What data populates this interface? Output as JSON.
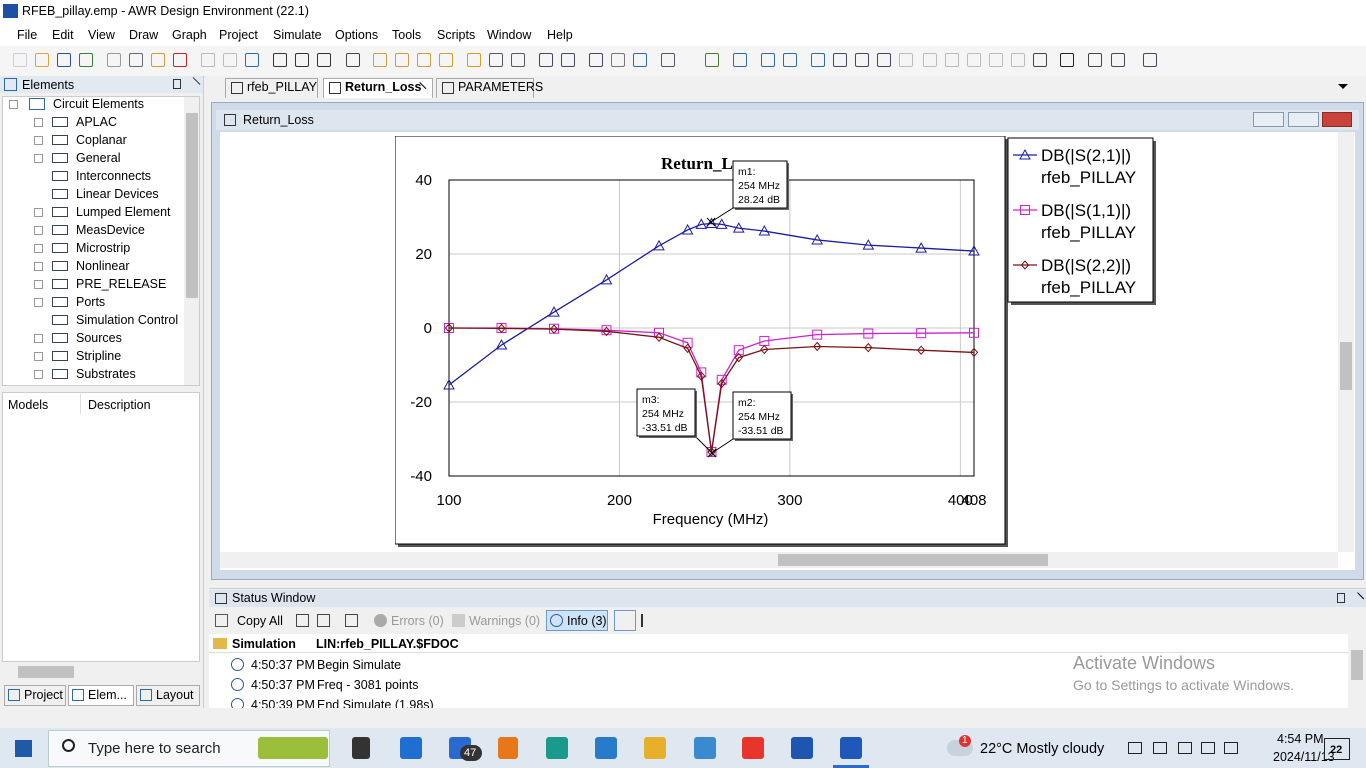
{
  "window": {
    "title": "RFEB_pillay.emp - AWR Design Environment (22.1)"
  },
  "menu": [
    "File",
    "Edit",
    "View",
    "Draw",
    "Graph",
    "Project",
    "Simulate",
    "Options",
    "Tools",
    "Scripts",
    "Window",
    "Help"
  ],
  "elements_panel": {
    "title": "Elements",
    "root": "Circuit Elements",
    "items": [
      "APLAC",
      "Coplanar",
      "General",
      "Interconnects",
      "Linear Devices",
      "Lumped Element",
      "MeasDevice",
      "Microstrip",
      "Nonlinear",
      "PRE_RELEASE",
      "Ports",
      "Simulation Control",
      "Sources",
      "Stripline",
      "Substrates"
    ]
  },
  "models_header": [
    "Models",
    "Description"
  ],
  "left_tabs": [
    "Project",
    "Elem...",
    "Layout"
  ],
  "doc_tabs": [
    "rfeb_PILLAY",
    "Return_Loss",
    "PARAMETERS"
  ],
  "graph_window": {
    "title": "Return_Loss"
  },
  "chart_data": {
    "type": "line",
    "title": "Return_Loss",
    "x_label": "Frequency (MHz)",
    "x": [
      100,
      130.8,
      161.6,
      192.4,
      223.2,
      240,
      248,
      254,
      260,
      270,
      285,
      316,
      346,
      377,
      408
    ],
    "xlim": [
      100,
      408
    ],
    "xticks": [
      100,
      200,
      300,
      400,
      408
    ],
    "ylim": [
      -40,
      40
    ],
    "yticks": [
      -40,
      -20,
      0,
      20,
      40
    ],
    "grid": true,
    "series": [
      {
        "name": "DB(|S(2,1)|)",
        "source": "rfeb_PILLAY",
        "color": "#1c1ca8",
        "marker": "triangle",
        "values": [
          -15.4,
          -4.6,
          4.3,
          13,
          22.2,
          26.5,
          28,
          28.24,
          28,
          27,
          26.2,
          23.8,
          22.4,
          21.6,
          20.8
        ]
      },
      {
        "name": "DB(|S(1,1)|)",
        "source": "rfeb_PILLAY",
        "color": "#d020d0",
        "marker": "square",
        "values": [
          0,
          0,
          -0.2,
          -0.6,
          -1.3,
          -4,
          -12,
          -33.51,
          -14,
          -6,
          -3.5,
          -1.8,
          -1.5,
          -1.4,
          -1.3
        ]
      },
      {
        "name": "DB(|S(2,2)|)",
        "source": "rfeb_PILLAY",
        "color": "#7a1414",
        "marker": "diamond",
        "values": [
          0,
          -0.1,
          -0.3,
          -0.9,
          -2.5,
          -5.5,
          -13,
          -33.51,
          -15,
          -8,
          -5.8,
          -5,
          -5.3,
          -6,
          -6.6
        ]
      }
    ],
    "annotations": [
      {
        "lines": [
          "m1:",
          "254 MHz",
          "28.24 dB"
        ]
      },
      {
        "lines": [
          "m2:",
          "254 MHz",
          "-33.51 dB"
        ]
      },
      {
        "lines": [
          "m3:",
          "254 MHz",
          "-33.51 dB"
        ]
      }
    ]
  },
  "status_window": {
    "title": "Status Window",
    "toolbar": [
      "Copy All",
      "Errors (0)",
      "Warnings (0)",
      "Info (3)"
    ],
    "group": [
      "Simulation",
      "LIN:rfeb_PILLAY.$FDOC"
    ],
    "rows": [
      [
        "4:50:37 PM",
        "Begin Simulate"
      ],
      [
        "4:50:37 PM",
        "Freq - 3081 points"
      ],
      [
        "4:50:39 PM",
        "End Simulate (1.98s)"
      ]
    ]
  },
  "watermark": [
    "Activate Windows",
    "Go to Settings to activate Windows."
  ],
  "taskbar": {
    "search": "Type here to search",
    "mail_badge": "47",
    "weather_badge": "1",
    "weather": "22°C  Mostly cloudy",
    "time": "4:54 PM",
    "date": "2024/11/13",
    "notifications": "22"
  }
}
